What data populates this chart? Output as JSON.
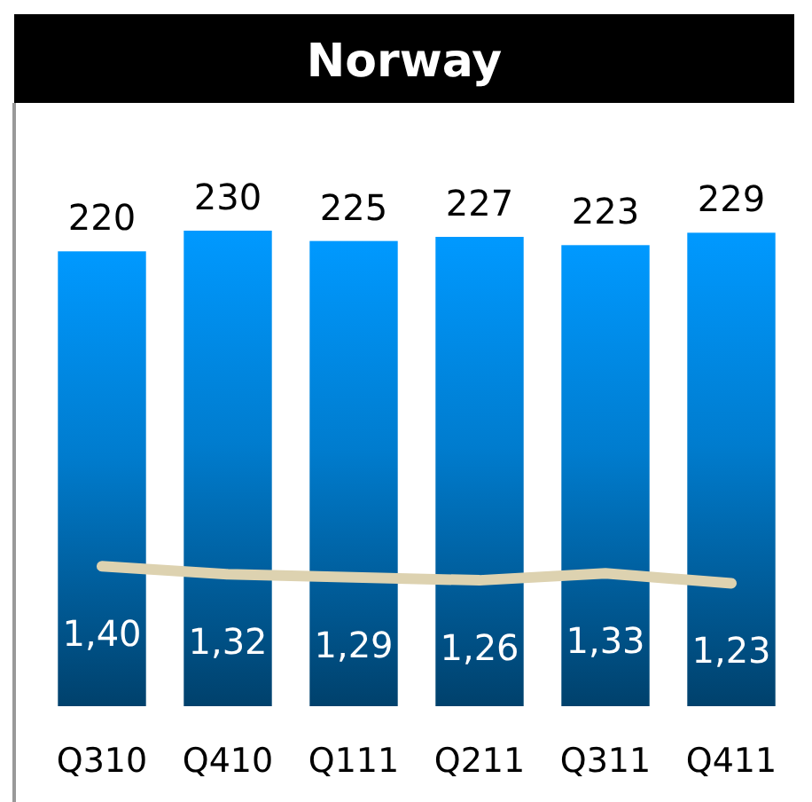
{
  "chart_data": {
    "type": "bar",
    "title": "Norway",
    "categories": [
      "Q310",
      "Q410",
      "Q111",
      "Q211",
      "Q311",
      "Q411"
    ],
    "series": [
      {
        "color": "#0099ff",
        "values": [
          220,
          230,
          225,
          227,
          223,
          229
        ],
        "value_labels": [
          "220",
          "230",
          "225",
          "227",
          "223",
          "229"
        ]
      },
      {
        "type": "line",
        "axis": "y2",
        "color": "#ddd2b0",
        "values": [
          1.4,
          1.32,
          1.29,
          1.26,
          1.33,
          1.23
        ],
        "value_labels": [
          "1,40",
          "1,32",
          "1,29",
          "1,26",
          "1,33",
          "1,23"
        ]
      }
    ]
  }
}
